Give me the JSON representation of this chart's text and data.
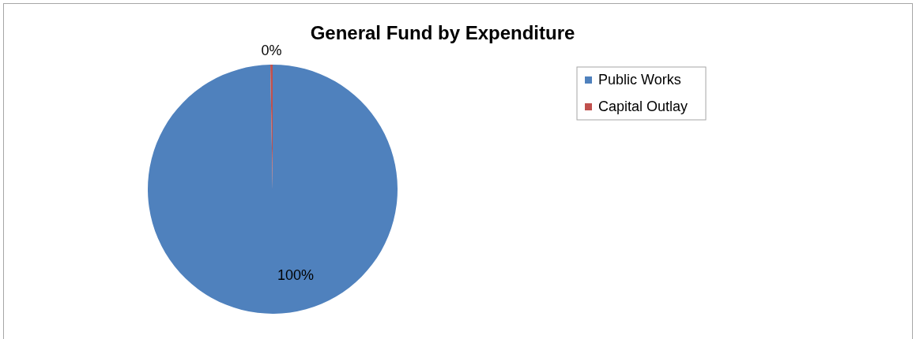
{
  "chart_data": {
    "type": "pie",
    "title": "General Fund by Expenditure",
    "categories": [
      "Public Works",
      "Capital Outlay"
    ],
    "values": [
      99.7,
      0.3
    ],
    "colors": [
      "#4f81bd",
      "#c0504d"
    ],
    "value_labels": [
      "100%",
      "0%"
    ],
    "legend": "right"
  }
}
